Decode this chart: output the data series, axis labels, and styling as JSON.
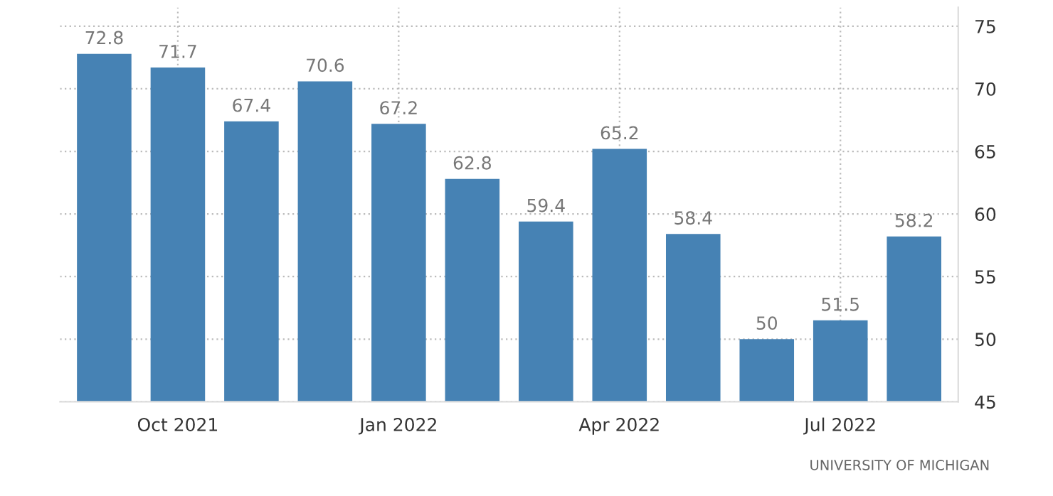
{
  "chart_data": {
    "type": "bar",
    "categories": [
      null,
      "Oct 2021",
      null,
      null,
      "Jan 2022",
      null,
      null,
      "Apr 2022",
      null,
      null,
      "Jul 2022",
      null
    ],
    "values": [
      72.8,
      71.7,
      67.4,
      70.6,
      67.2,
      62.8,
      59.4,
      65.2,
      58.4,
      50,
      51.5,
      58.2
    ],
    "color": "#4682b4",
    "ylim": [
      45,
      76.5
    ],
    "yticks": [
      45,
      50,
      55,
      60,
      65,
      70,
      75
    ],
    "grid": true,
    "data_labels": true,
    "annotations": [
      "UNIVERSITY OF MICHIGAN"
    ]
  }
}
